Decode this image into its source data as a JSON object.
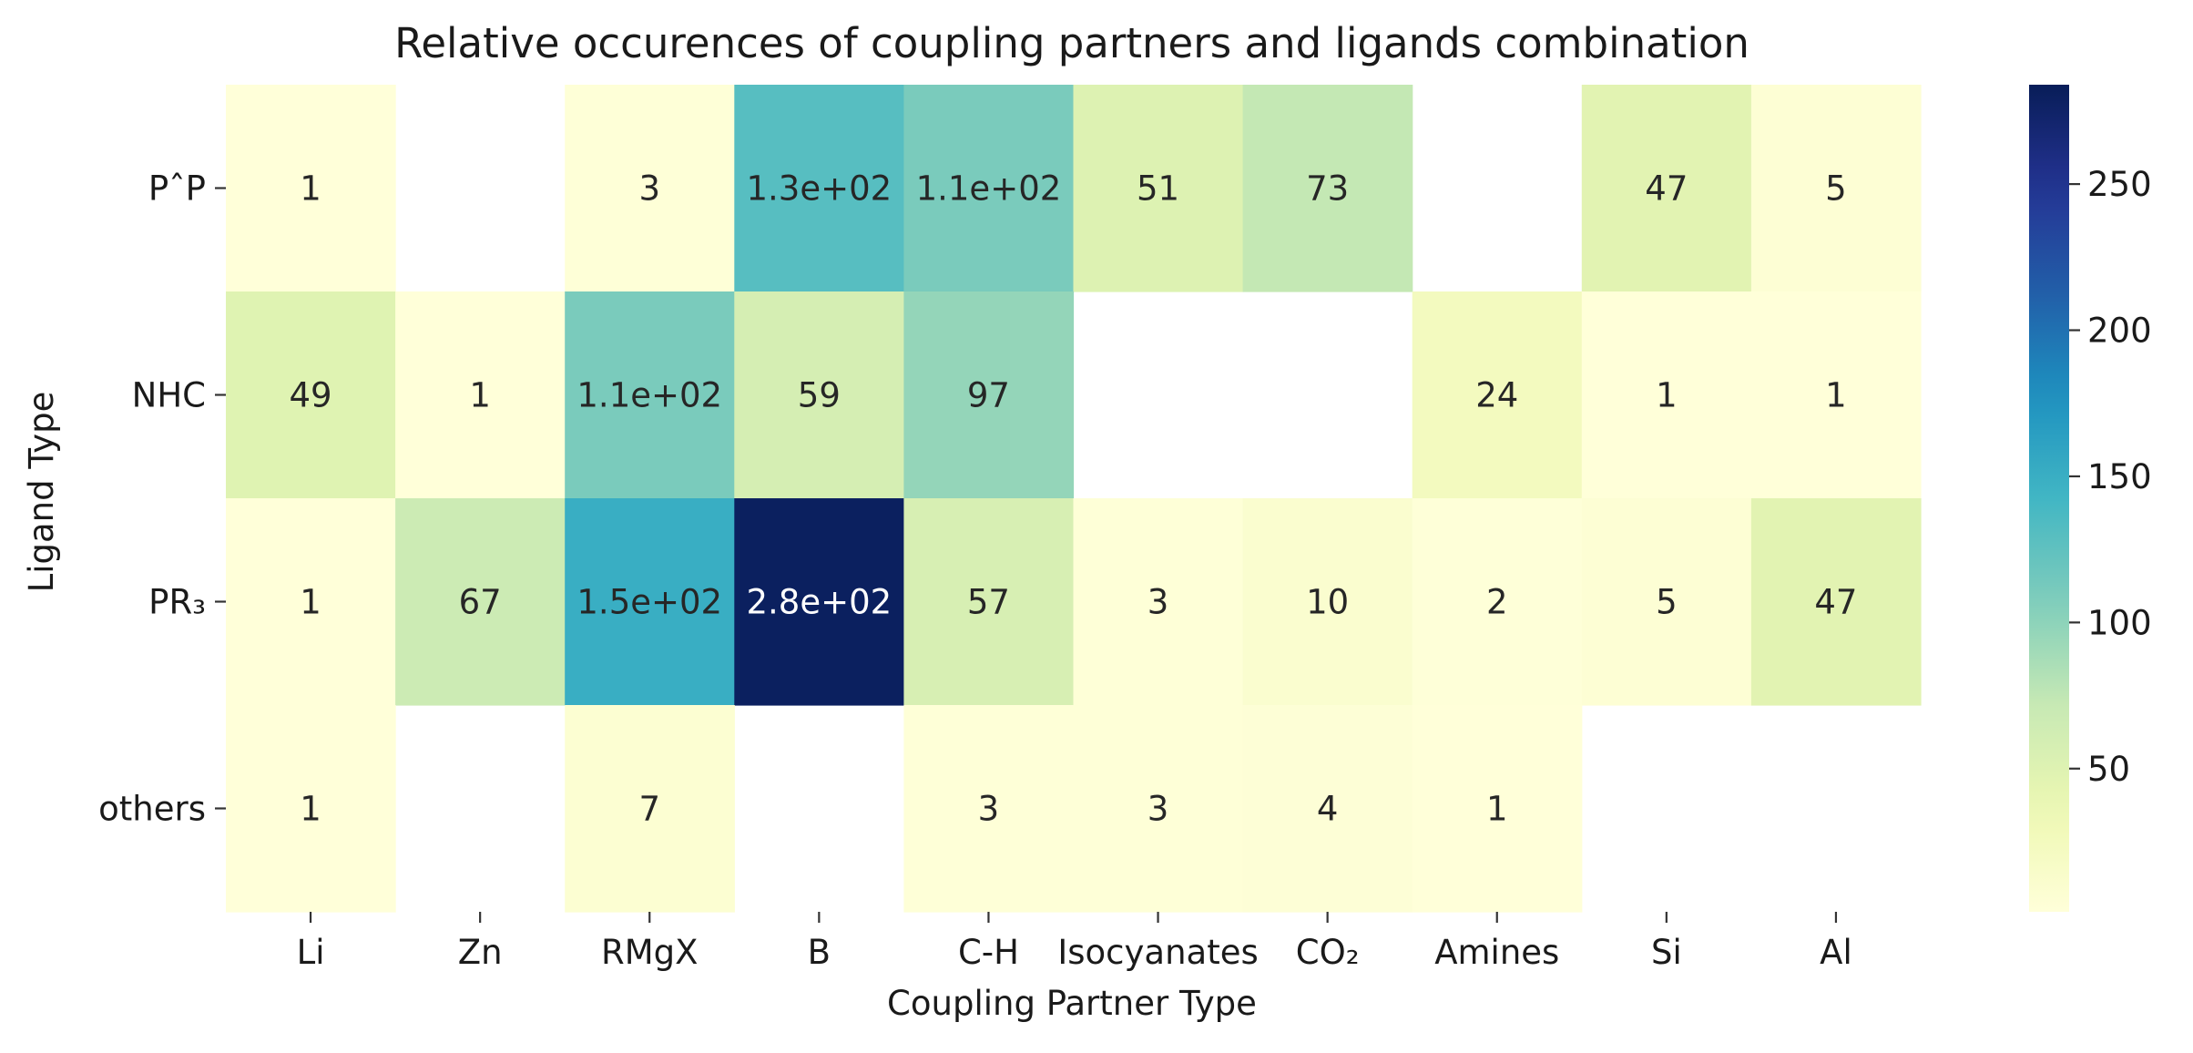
{
  "chart_data": {
    "type": "heatmap",
    "title": "Relative occurences of coupling partners and ligands combination",
    "xlabel": "Coupling Partner Type",
    "ylabel": "Ligand Type",
    "x_categories": [
      "Li",
      "Zn",
      "RMgX",
      "B",
      "C-H",
      "Isocyanates",
      "CO₂",
      "Amines",
      "Si",
      "Al"
    ],
    "y_categories": [
      "PˆP",
      "NHC",
      "PR₃",
      "others"
    ],
    "values": [
      [
        1,
        null,
        3,
        130,
        110,
        51,
        73,
        null,
        47,
        5
      ],
      [
        49,
        1,
        110,
        59,
        97,
        null,
        null,
        24,
        1,
        1
      ],
      [
        1,
        67,
        150,
        280,
        57,
        3,
        10,
        2,
        5,
        47
      ],
      [
        1,
        null,
        7,
        null,
        3,
        3,
        4,
        1,
        null,
        null
      ]
    ],
    "cell_labels": [
      [
        "1",
        "",
        "3",
        "1.3e+02",
        "1.1e+02",
        "51",
        "73",
        "",
        "47",
        "5"
      ],
      [
        "49",
        "1",
        "1.1e+02",
        "59",
        "97",
        "",
        "",
        "24",
        "1",
        "1"
      ],
      [
        "1",
        "67",
        "1.5e+02",
        "2.8e+02",
        "57",
        "3",
        "10",
        "2",
        "5",
        "47"
      ],
      [
        "1",
        "",
        "7",
        "",
        "3",
        "3",
        "4",
        "1",
        "",
        ""
      ]
    ],
    "colorbar": {
      "colormap": "YlGnBu",
      "range": [
        1,
        284
      ],
      "ticks": [
        50,
        100,
        150,
        200,
        250
      ]
    },
    "grid": false
  }
}
